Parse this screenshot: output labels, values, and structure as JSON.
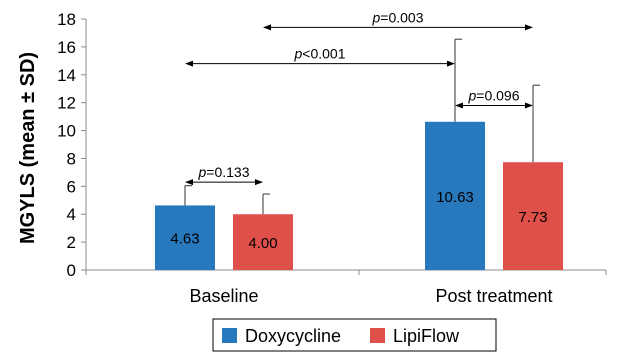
{
  "chart_data": {
    "type": "bar",
    "title": "",
    "xlabel": "",
    "ylabel": "MGYLS (mean ± SD)",
    "ylim": [
      0,
      18
    ],
    "yticks": [
      0,
      2,
      4,
      6,
      8,
      10,
      12,
      14,
      16,
      18
    ],
    "categories": [
      "Baseline",
      "Post treatment"
    ],
    "series": [
      {
        "name": "Doxycycline",
        "color": "#2878bd",
        "values": [
          4.63,
          10.63
        ],
        "labels": [
          "4.63",
          "10.63"
        ],
        "error_upper": [
          6.05,
          16.55
        ]
      },
      {
        "name": "LipiFlow",
        "color": "#e0504a",
        "values": [
          4.0,
          7.73
        ],
        "labels": [
          "4.00",
          "7.73"
        ],
        "error_upper": [
          5.45,
          13.25
        ]
      }
    ],
    "annotations": [
      {
        "label": "0.133",
        "y": 6.3,
        "from": {
          "category": 0,
          "series": 0
        },
        "to": {
          "category": 0,
          "series": 1
        }
      },
      {
        "label": "<0.001",
        "y": 14.8,
        "from": {
          "category": 0,
          "series": 0
        },
        "to": {
          "category": 1,
          "series": 0
        }
      },
      {
        "label": "0.003",
        "y": 17.4,
        "from": {
          "category": 0,
          "series": 1
        },
        "to": {
          "category": 1,
          "series": 1
        }
      },
      {
        "label": "0.096",
        "y": 11.8,
        "from": {
          "category": 1,
          "series": 0
        },
        "to": {
          "category": 1,
          "series": 1
        }
      }
    ],
    "annotation_prefix": "p",
    "legend_position": "bottom",
    "grid": false
  }
}
